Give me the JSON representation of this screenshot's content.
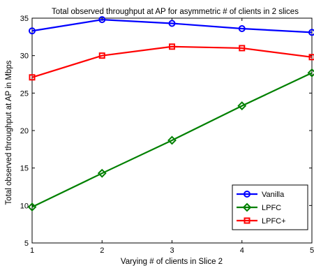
{
  "chart_data": {
    "type": "line",
    "title": "Total observed throughput at AP for asymmetric # of clients in 2 slices",
    "xlabel": "Varying # of clients in Slice 2",
    "ylabel": "Total observed throughput at AP in Mbps",
    "xlim": [
      1,
      5
    ],
    "ylim": [
      5,
      35
    ],
    "x": [
      1,
      2,
      3,
      4,
      5
    ],
    "xticks": [
      "1",
      "2",
      "3",
      "4",
      "5"
    ],
    "yticks": [
      "5",
      "10",
      "15",
      "20",
      "25",
      "30",
      "35"
    ],
    "grid": false,
    "legend_position": "bottom-right",
    "series": [
      {
        "name": "Vanilla",
        "color": "#0000ff",
        "marker": "circle",
        "values": [
          33.3,
          34.8,
          34.3,
          33.6,
          33.1
        ]
      },
      {
        "name": "LPFC",
        "color": "#008000",
        "marker": "diamond",
        "values": [
          9.8,
          14.3,
          18.7,
          23.3,
          27.7
        ]
      },
      {
        "name": "LPFC+",
        "color": "#ff0000",
        "marker": "square",
        "values": [
          27.1,
          30.0,
          31.2,
          31.0,
          29.8
        ]
      }
    ]
  }
}
